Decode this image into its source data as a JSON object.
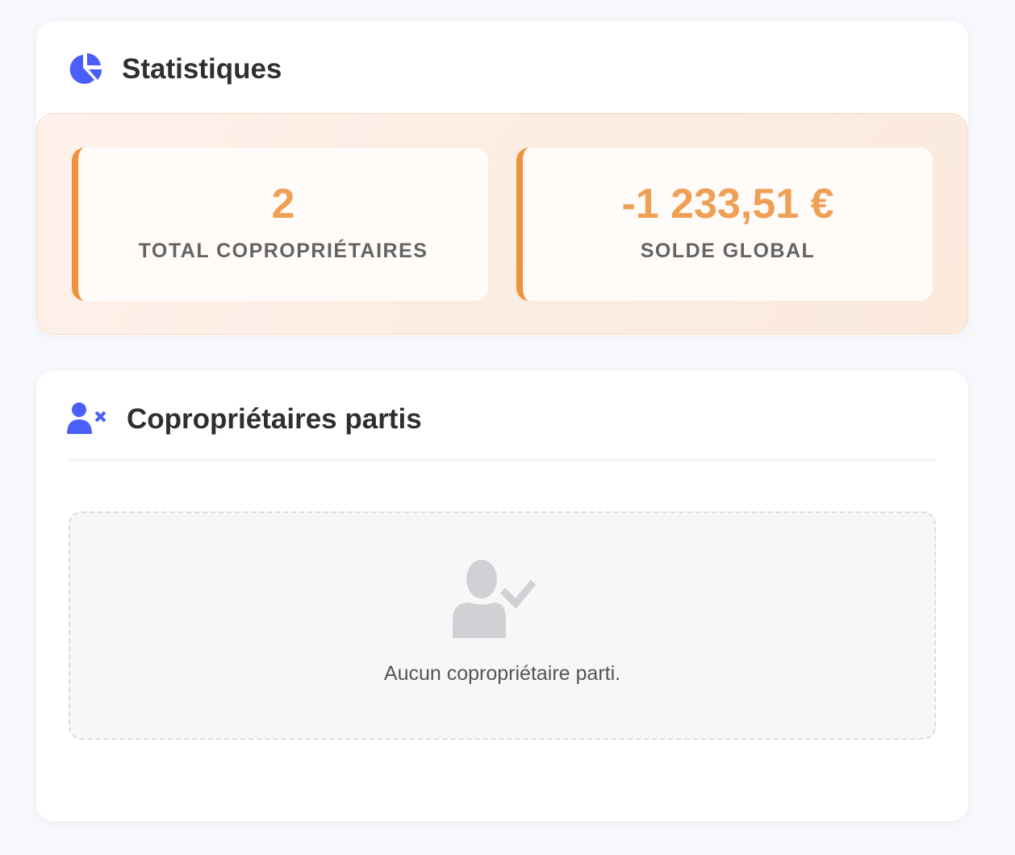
{
  "colors": {
    "accent": "#4a5ff7",
    "stat_value": "#f0a055",
    "stat_border": "#f0913b"
  },
  "statistics": {
    "title": "Statistiques",
    "icon": "chart-pie-icon",
    "items": [
      {
        "value": "2",
        "label": "TOTAL COPROPRIÉTAIRES"
      },
      {
        "value": "-1 233,51 €",
        "label": "SOLDE GLOBAL"
      }
    ]
  },
  "departed": {
    "title": "Copropriétaires partis",
    "icon": "user-xmark-icon",
    "empty_icon": "user-check-icon",
    "empty_message": "Aucun copropriétaire parti."
  }
}
